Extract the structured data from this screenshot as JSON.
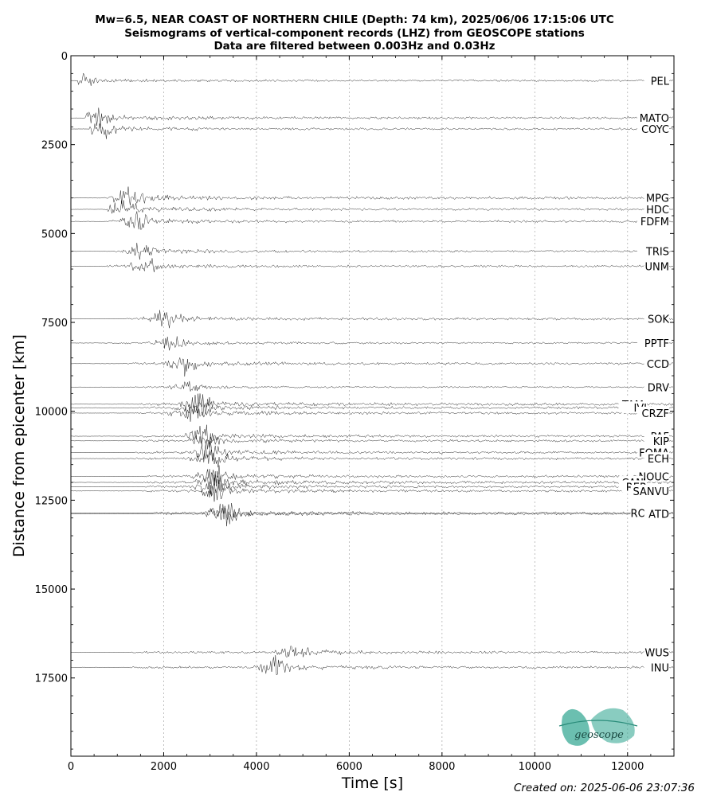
{
  "header": {
    "title_line1": "Mw=6.5, NEAR COAST OF NORTHERN CHILE (Depth: 74 km), 2025/06/06 17:15:06 UTC",
    "title_line2": "Seismograms of vertical-component records (LHZ) from GEOSCOPE stations",
    "title_line3": "Data are filtered between 0.003Hz and 0.03Hz"
  },
  "footer": {
    "created": "Created on: 2025-06-06 23:07:36",
    "logo_text": "geoscope"
  },
  "colors": {
    "trace": "#000000",
    "grid": "#b0b0b0",
    "logo": "#3aaa96"
  },
  "chart_data": {
    "type": "line",
    "xlabel": "Time [s]",
    "ylabel": "Distance from epicenter [km]",
    "xlim": [
      0,
      13000
    ],
    "ylim": [
      19700,
      0
    ],
    "xticks": [
      0,
      2000,
      4000,
      6000,
      8000,
      10000,
      12000
    ],
    "yticks": [
      0,
      2500,
      5000,
      7500,
      10000,
      12500,
      15000,
      17500
    ],
    "grid": "vertical dotted at x ticks",
    "legend": "none",
    "stations": [
      {
        "name": "PEL",
        "distance": 700,
        "onset": 150,
        "peak": 220,
        "amp": 0.6
      },
      {
        "name": "MATO",
        "distance": 1750,
        "onset": 300,
        "peak": 550,
        "amp": 0.8
      },
      {
        "name": "COYC",
        "distance": 2060,
        "onset": 380,
        "peak": 620,
        "amp": 0.7
      },
      {
        "name": "MPG",
        "distance": 4000,
        "onset": 700,
        "peak": 1250,
        "amp": 0.9
      },
      {
        "name": "HDC",
        "distance": 4320,
        "onset": 750,
        "peak": 1100,
        "amp": 0.8
      },
      {
        "name": "FDFM",
        "distance": 4660,
        "onset": 750,
        "peak": 1400,
        "amp": 0.8
      },
      {
        "name": "TRIS",
        "distance": 5500,
        "onset": 900,
        "peak": 1500,
        "amp": 0.7
      },
      {
        "name": "UNM",
        "distance": 5920,
        "onset": 600,
        "peak": 1550,
        "amp": 0.7
      },
      {
        "name": "SOK",
        "distance": 7400,
        "onset": 1100,
        "peak": 2000,
        "amp": 0.8
      },
      {
        "name": "PPTF",
        "distance": 8080,
        "onset": 700,
        "peak": 2100,
        "amp": 0.6
      },
      {
        "name": "CCD",
        "distance": 8660,
        "onset": 1100,
        "peak": 2400,
        "amp": 0.8
      },
      {
        "name": "DRV",
        "distance": 9320,
        "onset": 1200,
        "peak": 2450,
        "amp": 0.5
      },
      {
        "name": "TAM",
        "distance": 9800,
        "onset": 1400,
        "peak": 2700,
        "amp": 0.9
      },
      {
        "name": "IVI",
        "distance": 9900,
        "onset": 1400,
        "peak": 2650,
        "amp": 0.8
      },
      {
        "name": "CRZF",
        "distance": 10050,
        "onset": 1300,
        "peak": 2500,
        "amp": 0.8
      },
      {
        "name": "PAF",
        "distance": 10700,
        "onset": 1400,
        "peak": 2800,
        "amp": 0.8
      },
      {
        "name": "KIP",
        "distance": 10830,
        "onset": 1400,
        "peak": 2850,
        "amp": 0.7
      },
      {
        "name": "FOMA",
        "distance": 11160,
        "onset": 1300,
        "peak": 2900,
        "amp": 0.8
      },
      {
        "name": "ECH",
        "distance": 11330,
        "onset": 1200,
        "peak": 3000,
        "amp": 0.8
      },
      {
        "name": "NOUC",
        "distance": 11830,
        "onset": 1500,
        "peak": 3050,
        "amp": 0.8
      },
      {
        "name": "CAN",
        "distance": 12000,
        "onset": 1500,
        "peak": 3050,
        "amp": 0.9
      },
      {
        "name": "RER",
        "distance": 12120,
        "onset": 1500,
        "peak": 3050,
        "amp": 0.8
      },
      {
        "name": "SANVU",
        "distance": 12240,
        "onset": 1500,
        "peak": 3100,
        "amp": 0.8
      },
      {
        "name": "ROCAM",
        "distance": 12860,
        "onset": 1700,
        "peak": 3300,
        "amp": 0.8
      },
      {
        "name": "ATD",
        "distance": 12880,
        "onset": 1750,
        "peak": 3300,
        "amp": 0.8
      },
      {
        "name": "WUS",
        "distance": 16780,
        "onset": 1200,
        "peak": 4800,
        "amp": 0.8
      },
      {
        "name": "INU",
        "distance": 17200,
        "onset": 1200,
        "peak": 4350,
        "amp": 0.8
      }
    ]
  }
}
